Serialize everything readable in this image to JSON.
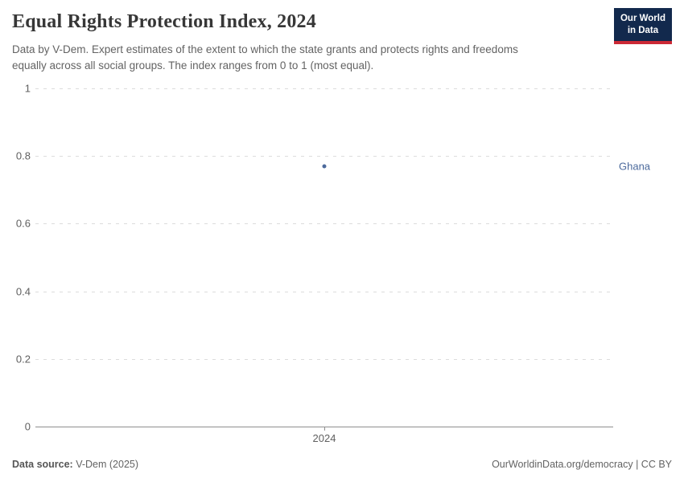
{
  "header": {
    "logo": {
      "line1": "Our World",
      "line2": "in Data",
      "bg_color": "#12294D",
      "bar_color": "#CC2936"
    }
  },
  "chart_data": {
    "type": "scatter",
    "title": "Equal Rights Protection Index, 2024",
    "subtitle": "Data by V-Dem. Expert estimates of the extent to which the state grants and protects rights and freedoms\nequally across all social groups. The index ranges from 0 to 1 (most equal).",
    "xlabel": "",
    "ylabel": "",
    "ylim": [
      0,
      1
    ],
    "grid": "horizontal-dashed",
    "legend_position": "label-right-of-plot",
    "yticks": [
      {
        "v": 0,
        "label": "0"
      },
      {
        "v": 0.2,
        "label": "0.2"
      },
      {
        "v": 0.4,
        "label": "0.4"
      },
      {
        "v": 0.6,
        "label": "0.6"
      },
      {
        "v": 0.8,
        "label": "0.8"
      },
      {
        "v": 1,
        "label": "1"
      }
    ],
    "xticks": [
      {
        "x": 2024,
        "label": "2024"
      }
    ],
    "series": [
      {
        "name": "Ghana",
        "color": "#4C6A9C",
        "points": [
          {
            "x": 2024,
            "y": 0.77
          }
        ]
      }
    ]
  },
  "footer": {
    "data_source_label": "Data source:",
    "data_source_value": " V-Dem (2025)",
    "site_link": "OurWorldinData.org/democracy",
    "separator": " | ",
    "license": "CC BY"
  }
}
